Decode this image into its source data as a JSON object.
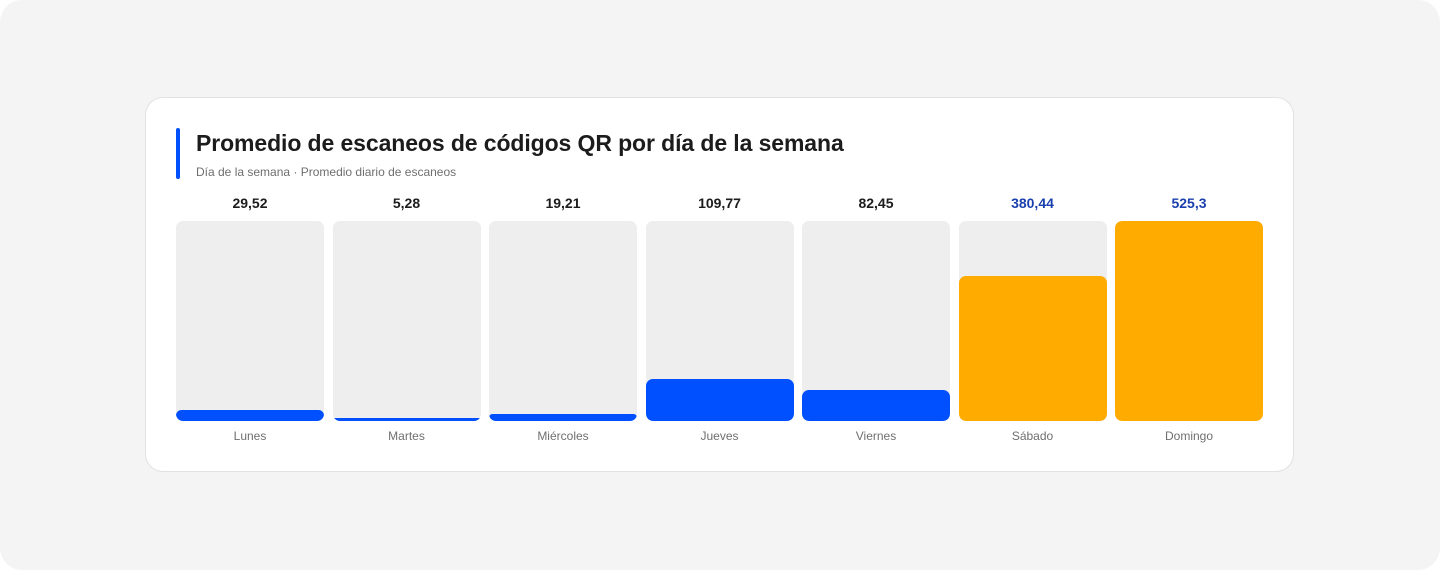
{
  "chart_data": {
    "type": "bar",
    "title": "Promedio de escaneos de códigos QR por día de la semana",
    "subtitle": "Día de la semana · Promedio diario de escaneos",
    "categories": [
      "Lunes",
      "Martes",
      "Miércoles",
      "Jueves",
      "Viernes",
      "Sábado",
      "Domingo"
    ],
    "values": [
      29.52,
      5.28,
      19.21,
      109.77,
      82.45,
      380.44,
      525.3
    ],
    "value_labels": [
      "29,52",
      "5,28",
      "19,21",
      "109,77",
      "82,45",
      "380,44",
      "525,3"
    ],
    "highlighted": [
      false,
      false,
      false,
      false,
      false,
      true,
      true
    ],
    "ylim": [
      0,
      525.3
    ],
    "grid": false,
    "legend": "none"
  },
  "colors": {
    "accent": "#0050ff",
    "bar_default": "#0050ff",
    "bar_highlight": "#ffab00",
    "label_default": "#1c1c1c",
    "label_highlight": "#1a3fae",
    "track": "#eeeeee"
  }
}
